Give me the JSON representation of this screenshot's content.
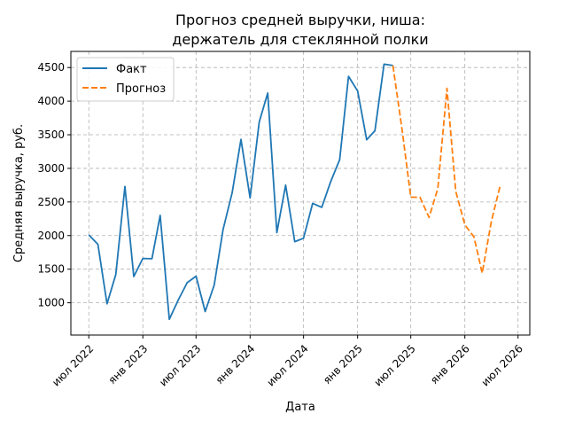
{
  "chart_data": {
    "type": "line",
    "title_lines": [
      "Прогноз средней выручки, ниша:",
      "держатель для стеклянной полки"
    ],
    "xlabel": "Дата",
    "ylabel": "Средняя выручка, руб.",
    "x_axis": {
      "type": "date",
      "range": [
        "2022-05-01",
        "2026-08-10"
      ],
      "ticks": [
        {
          "date": "2022-07-01",
          "label": "июл 2022"
        },
        {
          "date": "2023-01-01",
          "label": "янв 2023"
        },
        {
          "date": "2023-07-01",
          "label": "июл 2023"
        },
        {
          "date": "2024-01-01",
          "label": "янв 2024"
        },
        {
          "date": "2024-07-01",
          "label": "июл 2024"
        },
        {
          "date": "2025-01-01",
          "label": "янв 2025"
        },
        {
          "date": "2025-07-01",
          "label": "июл 2025"
        },
        {
          "date": "2026-01-01",
          "label": "янв 2026"
        },
        {
          "date": "2026-07-01",
          "label": "июл 2026"
        }
      ]
    },
    "y_axis": {
      "range": [
        520,
        4740
      ],
      "ticks": [
        1000,
        1500,
        2000,
        2500,
        3000,
        3500,
        4000,
        4500
      ]
    },
    "grid": true,
    "legend": {
      "placement": "top-left"
    },
    "series": [
      {
        "name": "Факт",
        "style": "solid",
        "color": "#1f77b4",
        "x": [
          "2022-07-01",
          "2022-08-01",
          "2022-09-01",
          "2022-10-01",
          "2022-11-01",
          "2022-12-01",
          "2023-01-01",
          "2023-02-01",
          "2023-03-01",
          "2023-04-01",
          "2023-05-01",
          "2023-06-01",
          "2023-07-01",
          "2023-08-01",
          "2023-09-01",
          "2023-10-01",
          "2023-11-01",
          "2023-12-01",
          "2024-01-01",
          "2024-02-01",
          "2024-03-01",
          "2024-04-01",
          "2024-05-01",
          "2024-06-01",
          "2024-07-01",
          "2024-08-01",
          "2024-09-01",
          "2024-10-01",
          "2024-11-01",
          "2024-12-01",
          "2025-01-01",
          "2025-02-01",
          "2025-03-01",
          "2025-04-01",
          "2025-05-01"
        ],
        "y": [
          2010,
          1870,
          985,
          1420,
          2730,
          1390,
          1660,
          1655,
          2300,
          755,
          1035,
          1300,
          1395,
          870,
          1265,
          2090,
          2640,
          3430,
          2560,
          3690,
          4120,
          2045,
          2750,
          1910,
          1960,
          2480,
          2420,
          2800,
          3130,
          4370,
          4150,
          3425,
          3560,
          4550,
          4530
        ]
      },
      {
        "name": "Прогноз",
        "style": "dashed",
        "color": "#ff7f0e",
        "x": [
          "2025-05-01",
          "2025-06-01",
          "2025-07-01",
          "2025-08-01",
          "2025-09-01",
          "2025-10-01",
          "2025-11-01",
          "2025-12-01",
          "2026-01-01",
          "2026-02-01",
          "2026-03-01",
          "2026-04-01",
          "2026-05-01"
        ],
        "y": [
          4530,
          3590,
          2570,
          2570,
          2270,
          2700,
          4190,
          2660,
          2160,
          1980,
          1440,
          2210,
          2740
        ]
      }
    ]
  }
}
